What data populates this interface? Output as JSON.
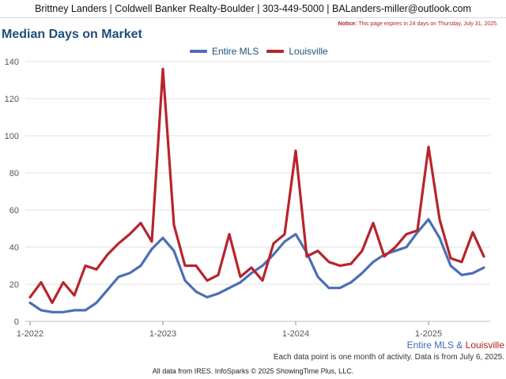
{
  "header": {
    "agent_line": "Brittney Landers | Coldwell Banker Realty-Boulder | 303-449-5000 | BALanders-miller@outlook.com"
  },
  "notice": {
    "label": "Notice:",
    "text": "This page expires in 24 days on Thursday, July 31, 2025."
  },
  "chart_data": {
    "type": "line",
    "title": "Median Days on Market",
    "xlabel": "",
    "ylabel": "",
    "ylim": [
      0,
      140
    ],
    "yticks": [
      0,
      20,
      40,
      60,
      80,
      100,
      120,
      140
    ],
    "xtick_labels": [
      "1-2022",
      "1-2023",
      "1-2024",
      "1-2025"
    ],
    "xtick_index": [
      0,
      12,
      24,
      36
    ],
    "grid": "horizontal",
    "legend_position": "top-center",
    "series": [
      {
        "name": "Entire MLS",
        "color": "#4a6fb5",
        "values": [
          10,
          6,
          5,
          5,
          6,
          6,
          10,
          17,
          24,
          26,
          30,
          39,
          45,
          38,
          22,
          16,
          13,
          15,
          18,
          21,
          26,
          30,
          36,
          43,
          47,
          37,
          24,
          18,
          18,
          21,
          26,
          32,
          36,
          38,
          40,
          48,
          55,
          45,
          30,
          25,
          26,
          29
        ]
      },
      {
        "name": "Louisville",
        "color": "#b8242c",
        "values": [
          13,
          21,
          10,
          21,
          14,
          30,
          28,
          36,
          42,
          47,
          53,
          43,
          136,
          52,
          30,
          30,
          22,
          25,
          47,
          24,
          29,
          22,
          42,
          47,
          92,
          35,
          38,
          32,
          30,
          31,
          38,
          53,
          35,
          40,
          47,
          49,
          94,
          55,
          34,
          32,
          48,
          35
        ]
      }
    ]
  },
  "source_line": {
    "a": "Entire MLS",
    "amp": " & ",
    "b": "Louisville"
  },
  "footnote": "Each data point is one month of activity. Data is from July 6, 2025.",
  "copyright": "All data from IRES. InfoSparks © 2025 ShowingTime Plus, LLC."
}
